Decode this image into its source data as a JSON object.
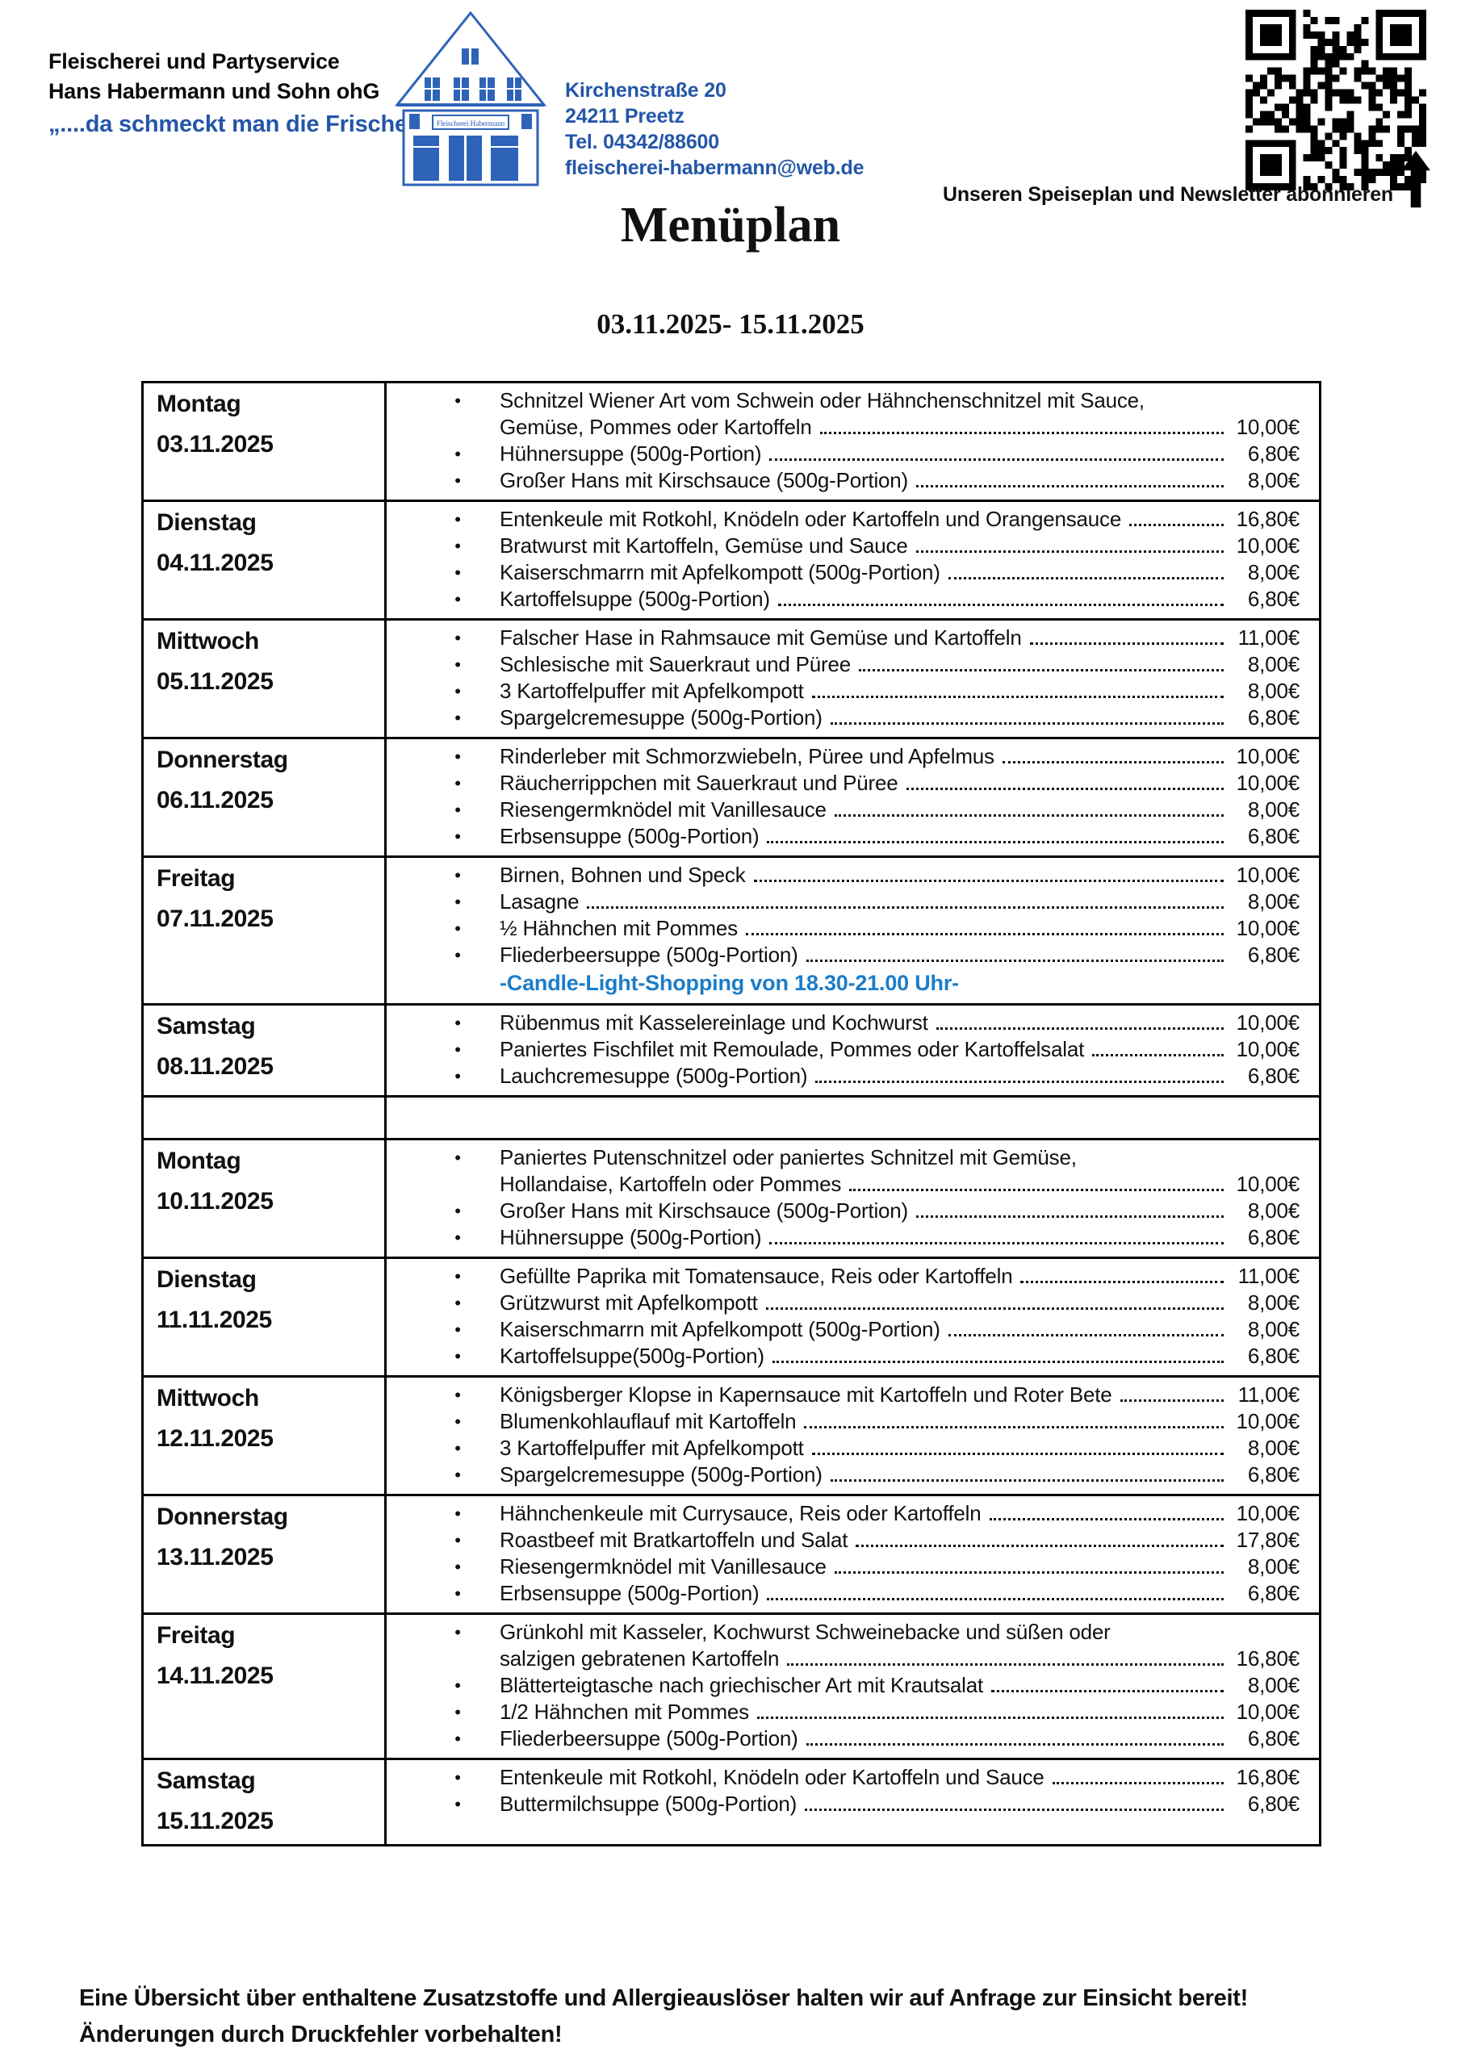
{
  "header": {
    "company_line1": "Fleischerei und Partyservice",
    "company_line2": "Hans Habermann und Sohn ohG",
    "tagline": "„....da schmeckt man die Frische...“",
    "logo_sign": "Fleischerei Habermann",
    "address_lines": [
      "Kirchenstraße 20",
      "24211 Preetz",
      "Tel. 04342/88600",
      "fleischerei-habermann@web.de"
    ],
    "qr_caption": "Unseren Speiseplan und Newsletter abonnieren"
  },
  "title": "Menüplan",
  "date_range": "03.11.2025- 15.11.2025",
  "colors": {
    "header_blue": "#2456a8",
    "note_blue": "#1b7dc9",
    "logo_blue": "#2e63b8",
    "text_black": "#111111"
  },
  "menu": {
    "rows": [
      {
        "day": "Montag",
        "date": "03.11.2025",
        "items": [
          {
            "lines": [
              "Schnitzel Wiener Art vom Schwein oder Hähnchenschnitzel mit Sauce,",
              "Gemüse, Pommes oder Kartoffeln"
            ],
            "price": "10,00€"
          },
          {
            "lines": [
              "Hühnersuppe (500g-Portion)"
            ],
            "price": "6,80€"
          },
          {
            "lines": [
              "Großer Hans mit Kirschsauce (500g-Portion)"
            ],
            "price": "8,00€"
          }
        ]
      },
      {
        "day": "Dienstag",
        "date": "04.11.2025",
        "items": [
          {
            "lines": [
              "Entenkeule mit Rotkohl, Knödeln oder Kartoffeln und Orangensauce"
            ],
            "price": "16,80€"
          },
          {
            "lines": [
              "Bratwurst mit Kartoffeln, Gemüse und Sauce"
            ],
            "price": "10,00€"
          },
          {
            "lines": [
              "Kaiserschmarrn mit Apfelkompott (500g-Portion)"
            ],
            "price": "8,00€"
          },
          {
            "lines": [
              "Kartoffelsuppe (500g-Portion)"
            ],
            "price": "6,80€"
          }
        ]
      },
      {
        "day": "Mittwoch",
        "date": "05.11.2025",
        "items": [
          {
            "lines": [
              "Falscher Hase in Rahmsauce mit Gemüse und Kartoffeln"
            ],
            "price": "11,00€"
          },
          {
            "lines": [
              "Schlesische mit Sauerkraut und Püree"
            ],
            "price": "8,00€"
          },
          {
            "lines": [
              "3 Kartoffelpuffer mit Apfelkompott"
            ],
            "price": "8,00€"
          },
          {
            "lines": [
              "Spargelcremesuppe (500g-Portion)"
            ],
            "price": "6,80€"
          }
        ]
      },
      {
        "day": "Donnerstag",
        "date": "06.11.2025",
        "items": [
          {
            "lines": [
              "Rinderleber mit Schmorzwiebeln, Püree und Apfelmus"
            ],
            "price": "10,00€"
          },
          {
            "lines": [
              "Räucherrippchen mit Sauerkraut und Püree"
            ],
            "price": "10,00€"
          },
          {
            "lines": [
              "Riesengermknödel mit Vanillesauce"
            ],
            "price": "8,00€"
          },
          {
            "lines": [
              "Erbsensuppe (500g-Portion)"
            ],
            "price": "6,80€"
          }
        ]
      },
      {
        "day": "Freitag",
        "date": "07.11.2025",
        "items": [
          {
            "lines": [
              "Birnen, Bohnen und Speck"
            ],
            "price": "10,00€"
          },
          {
            "lines": [
              "Lasagne"
            ],
            "price": "8,00€"
          },
          {
            "lines": [
              "½ Hähnchen mit Pommes"
            ],
            "price": "10,00€"
          },
          {
            "lines": [
              "Fliederbeersuppe (500g-Portion)"
            ],
            "price": "6,80€"
          }
        ],
        "note": "-Candle-Light-Shopping von 18.30-21.00 Uhr-"
      },
      {
        "day": "Samstag",
        "date": "08.11.2025",
        "items": [
          {
            "lines": [
              "Rübenmus mit Kasselereinlage und Kochwurst"
            ],
            "price": "10,00€"
          },
          {
            "lines": [
              "Paniertes Fischfilet mit Remoulade, Pommes oder Kartoffelsalat"
            ],
            "price": "10,00€"
          },
          {
            "lines": [
              "Lauchcremesuppe (500g-Portion)"
            ],
            "price": "6,80€"
          }
        ]
      },
      {
        "day": "",
        "date": "",
        "items": []
      },
      {
        "day": "Montag",
        "date": "10.11.2025",
        "items": [
          {
            "lines": [
              "Paniertes Putenschnitzel oder paniertes Schnitzel mit Gemüse,",
              "Hollandaise, Kartoffeln oder Pommes"
            ],
            "price": "10,00€"
          },
          {
            "lines": [
              "Großer Hans mit Kirschsauce (500g-Portion)"
            ],
            "price": "8,00€"
          },
          {
            "lines": [
              "Hühnersuppe (500g-Portion)"
            ],
            "price": "6,80€"
          }
        ]
      },
      {
        "day": "Dienstag",
        "date": "11.11.2025",
        "items": [
          {
            "lines": [
              "Gefüllte Paprika mit Tomatensauce, Reis oder Kartoffeln"
            ],
            "price": "11,00€"
          },
          {
            "lines": [
              "Grützwurst mit Apfelkompott"
            ],
            "price": "8,00€"
          },
          {
            "lines": [
              "Kaiserschmarrn mit Apfelkompott (500g-Portion)"
            ],
            "price": "8,00€"
          },
          {
            "lines": [
              "Kartoffelsuppe(500g-Portion)"
            ],
            "price": "6,80€"
          }
        ]
      },
      {
        "day": "Mittwoch",
        "date": "12.11.2025",
        "items": [
          {
            "lines": [
              "Königsberger Klopse in Kapernsauce mit Kartoffeln und Roter Bete"
            ],
            "price": "11,00€"
          },
          {
            "lines": [
              "Blumenkohlauflauf mit Kartoffeln"
            ],
            "price": "10,00€"
          },
          {
            "lines": [
              "3 Kartoffelpuffer mit Apfelkompott"
            ],
            "price": "8,00€"
          },
          {
            "lines": [
              "Spargelcremesuppe (500g-Portion)"
            ],
            "price": "6,80€"
          }
        ]
      },
      {
        "day": "Donnerstag",
        "date": "13.11.2025",
        "items": [
          {
            "lines": [
              "Hähnchenkeule mit Currysauce, Reis oder Kartoffeln"
            ],
            "price": "10,00€"
          },
          {
            "lines": [
              "Roastbeef mit Bratkartoffeln und Salat"
            ],
            "price": "17,80€"
          },
          {
            "lines": [
              "Riesengermknödel mit Vanillesauce"
            ],
            "price": "8,00€"
          },
          {
            "lines": [
              "Erbsensuppe (500g-Portion)"
            ],
            "price": "6,80€"
          }
        ]
      },
      {
        "day": "Freitag",
        "date": "14.11.2025",
        "items": [
          {
            "lines": [
              "Grünkohl mit Kasseler, Kochwurst Schweinebacke und süßen oder",
              "salzigen gebratenen Kartoffeln"
            ],
            "price": "16,80€"
          },
          {
            "lines": [
              "Blätterteigtasche nach griechischer Art mit Krautsalat"
            ],
            "price": "8,00€"
          },
          {
            "lines": [
              "1/2 Hähnchen mit Pommes"
            ],
            "price": "10,00€"
          },
          {
            "lines": [
              "Fliederbeersuppe (500g-Portion)"
            ],
            "price": "6,80€"
          }
        ]
      },
      {
        "day": "Samstag",
        "date": "15.11.2025",
        "items": [
          {
            "lines": [
              "Entenkeule mit Rotkohl, Knödeln oder Kartoffeln und Sauce"
            ],
            "price": "16,80€"
          },
          {
            "lines": [
              "Buttermilchsuppe (500g-Portion)"
            ],
            "price": "6,80€"
          }
        ]
      }
    ]
  },
  "footer": {
    "line1": "Eine Übersicht über enthaltene Zusatzstoffe und Allergieauslöser halten wir auf Anfrage zur Einsicht bereit!",
    "line2": "Änderungen durch Druckfehler vorbehalten!"
  }
}
